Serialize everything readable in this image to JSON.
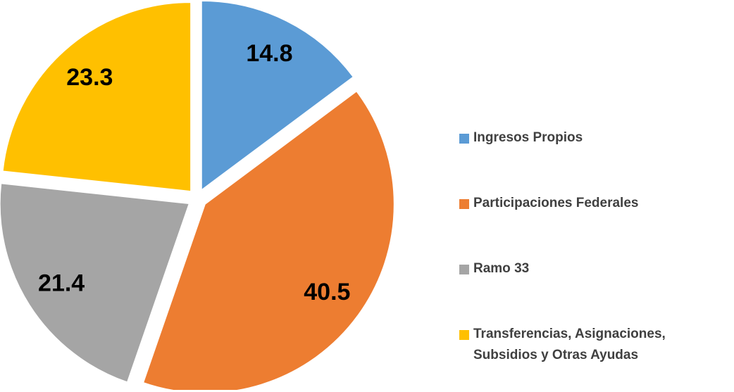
{
  "chart_data": {
    "type": "pie",
    "categories": [
      "Ingresos Propios",
      "Participaciones Federales",
      "Ramo 33",
      "Transferencias, Asignaciones, Subsidios y Otras Ayudas"
    ],
    "values": [
      14.8,
      40.5,
      21.4,
      23.3
    ],
    "colors": [
      "#5b9bd5",
      "#ed7d31",
      "#a5a5a5",
      "#ffc000"
    ],
    "legend": "right"
  }
}
